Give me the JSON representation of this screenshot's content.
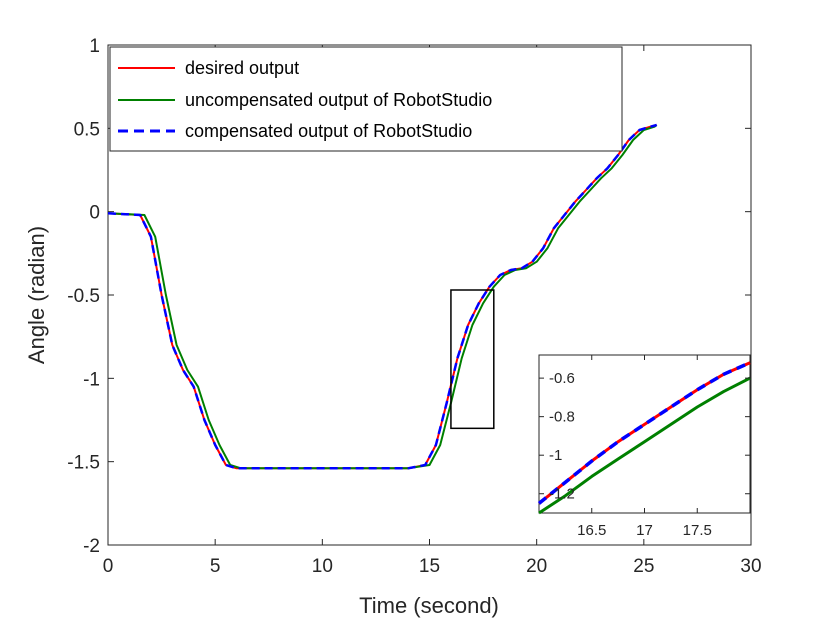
{
  "chart_data": [
    {
      "type": "line",
      "xlabel": "Time (second)",
      "ylabel": "Angle (radian)",
      "xlim": [
        0,
        30
      ],
      "ylim": [
        -2,
        1
      ],
      "xticks": [
        "0",
        "5",
        "10",
        "15",
        "20",
        "25",
        "30"
      ],
      "yticks": [
        "-2",
        "-1.5",
        "-1",
        "-0.5",
        "0",
        "0.5",
        "1"
      ],
      "legend_position": "top-left",
      "grid": false,
      "series": [
        {
          "name": "desired output",
          "color": "#ff0000",
          "style": "solid",
          "x": [
            0,
            1.5,
            2.0,
            2.5,
            3.0,
            3.5,
            4.0,
            4.5,
            5.0,
            5.5,
            6.0,
            8,
            10,
            12,
            14,
            14.8,
            15.3,
            15.8,
            16.3,
            16.8,
            17.3,
            17.8,
            18.3,
            18.8,
            19.3,
            19.8,
            20.3,
            20.8,
            21.3,
            21.8,
            22.3,
            22.8,
            23.3,
            23.8,
            24.3,
            24.8,
            25.3,
            25.6
          ],
          "y": [
            -0.01,
            -0.02,
            -0.15,
            -0.5,
            -0.8,
            -0.95,
            -1.05,
            -1.25,
            -1.4,
            -1.52,
            -1.54,
            -1.54,
            -1.54,
            -1.54,
            -1.54,
            -1.52,
            -1.4,
            -1.15,
            -0.88,
            -0.68,
            -0.55,
            -0.45,
            -0.38,
            -0.35,
            -0.34,
            -0.3,
            -0.22,
            -0.1,
            -0.02,
            0.06,
            0.13,
            0.2,
            0.26,
            0.34,
            0.43,
            0.49,
            0.51,
            0.52
          ]
        },
        {
          "name": "uncompensated output of RobotStudio",
          "color": "#008000",
          "style": "solid",
          "x": [
            0,
            1.7,
            2.2,
            2.7,
            3.2,
            3.7,
            4.2,
            4.7,
            5.2,
            5.7,
            6.2,
            8,
            10,
            12,
            14,
            15.0,
            15.5,
            16.0,
            16.5,
            17.0,
            17.5,
            18.0,
            18.5,
            19.0,
            19.5,
            20.0,
            20.5,
            21.0,
            21.5,
            22.0,
            22.5,
            23.0,
            23.5,
            24.0,
            24.5,
            25.0,
            25.5,
            25.6
          ],
          "y": [
            -0.01,
            -0.02,
            -0.15,
            -0.5,
            -0.8,
            -0.95,
            -1.05,
            -1.25,
            -1.4,
            -1.52,
            -1.54,
            -1.54,
            -1.54,
            -1.54,
            -1.54,
            -1.52,
            -1.4,
            -1.15,
            -0.88,
            -0.68,
            -0.55,
            -0.45,
            -0.38,
            -0.35,
            -0.34,
            -0.3,
            -0.22,
            -0.1,
            -0.02,
            0.06,
            0.13,
            0.2,
            0.26,
            0.34,
            0.43,
            0.49,
            0.51,
            0.52
          ]
        },
        {
          "name": "compensated output of RobotStudio",
          "color": "#0000ff",
          "style": "dashed",
          "x": [
            0,
            1.5,
            2.0,
            2.5,
            3.0,
            3.5,
            4.0,
            4.5,
            5.0,
            5.5,
            6.0,
            8,
            10,
            12,
            14,
            14.8,
            15.3,
            15.8,
            16.3,
            16.8,
            17.3,
            17.8,
            18.3,
            18.8,
            19.3,
            19.8,
            20.3,
            20.8,
            21.3,
            21.8,
            22.3,
            22.8,
            23.3,
            23.8,
            24.3,
            24.8,
            25.3,
            25.6
          ],
          "y": [
            -0.01,
            -0.02,
            -0.15,
            -0.5,
            -0.8,
            -0.95,
            -1.05,
            -1.25,
            -1.4,
            -1.52,
            -1.54,
            -1.54,
            -1.54,
            -1.54,
            -1.54,
            -1.52,
            -1.4,
            -1.15,
            -0.88,
            -0.68,
            -0.55,
            -0.45,
            -0.38,
            -0.35,
            -0.34,
            -0.3,
            -0.22,
            -0.1,
            -0.02,
            0.06,
            0.13,
            0.2,
            0.26,
            0.34,
            0.43,
            0.49,
            0.51,
            0.52
          ]
        }
      ],
      "zoom_box": {
        "x": [
          16,
          18
        ],
        "y": [
          -1.3,
          -0.47
        ]
      }
    },
    {
      "type": "line",
      "role": "inset",
      "xlim": [
        16,
        18
      ],
      "ylim": [
        -1.3,
        -0.48
      ],
      "xticks": [
        "16.5",
        "17",
        "17.5"
      ],
      "yticks": [
        "-0.6",
        "-0.8",
        "-1",
        "-1.2"
      ],
      "series": [
        {
          "name": "desired output",
          "color": "#ff0000",
          "style": "solid",
          "x": [
            16.0,
            16.25,
            16.5,
            16.75,
            17.0,
            17.25,
            17.5,
            17.75,
            18.0
          ],
          "y": [
            -1.25,
            -1.14,
            -1.03,
            -0.93,
            -0.84,
            -0.75,
            -0.66,
            -0.58,
            -0.52
          ]
        },
        {
          "name": "uncompensated output of RobotStudio",
          "color": "#008000",
          "style": "solid",
          "x": [
            16.0,
            16.25,
            16.5,
            16.75,
            17.0,
            17.25,
            17.5,
            17.75,
            18.0
          ],
          "y": [
            -1.3,
            -1.21,
            -1.11,
            -1.02,
            -0.93,
            -0.84,
            -0.75,
            -0.67,
            -0.6
          ]
        },
        {
          "name": "compensated output of RobotStudio",
          "color": "#0000ff",
          "style": "dashed",
          "x": [
            16.0,
            16.25,
            16.5,
            16.75,
            17.0,
            17.25,
            17.5,
            17.75,
            18.0
          ],
          "y": [
            -1.25,
            -1.14,
            -1.03,
            -0.93,
            -0.84,
            -0.75,
            -0.66,
            -0.58,
            -0.52
          ]
        }
      ]
    }
  ]
}
